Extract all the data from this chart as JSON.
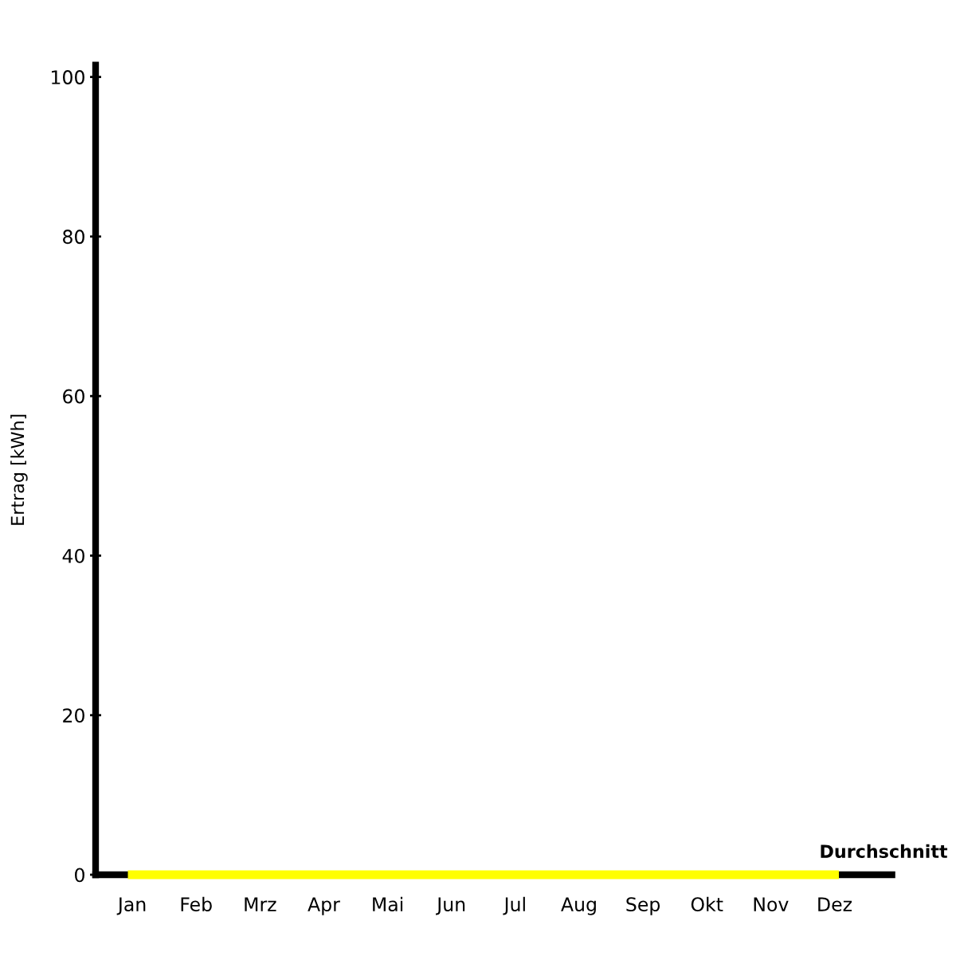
{
  "chart_data": {
    "type": "line",
    "ylabel": "Ertrag [kWh]",
    "categories": [
      "Jan",
      "Feb",
      "Mrz",
      "Apr",
      "Mai",
      "Jun",
      "Jul",
      "Aug",
      "Sep",
      "Okt",
      "Nov",
      "Dez"
    ],
    "series": [
      {
        "name": "Durchschnitt",
        "color": "#ffff00",
        "values": [
          0,
          0,
          0,
          0,
          0,
          0,
          0,
          0,
          0,
          0,
          0,
          0
        ]
      }
    ],
    "ylim": [
      0,
      101.5
    ],
    "yticks": [
      0,
      20,
      40,
      60,
      80,
      100
    ],
    "grid": false
  }
}
